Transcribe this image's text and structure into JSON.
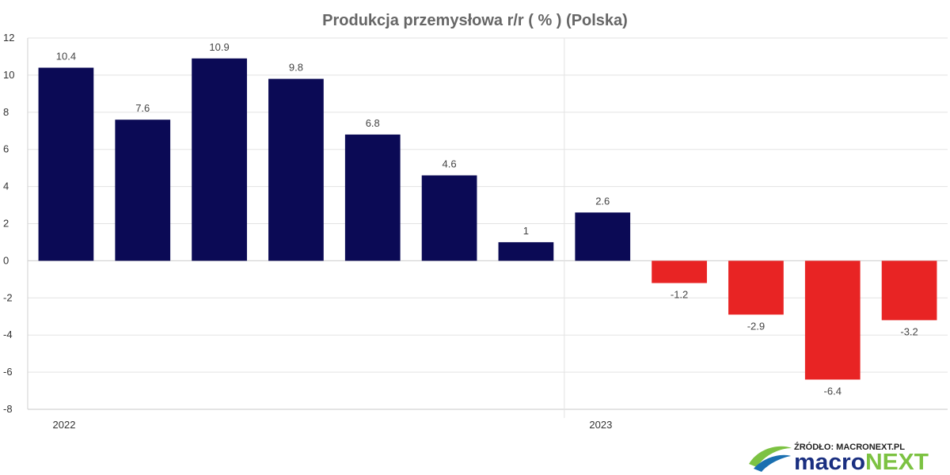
{
  "chart_data": {
    "type": "bar",
    "title": "Produkcja przemysłowa r/r ( % ) (Polska)",
    "xlabel": "",
    "ylabel": "",
    "ylim": [
      -8,
      12
    ],
    "yticks": [
      12,
      10,
      8,
      6,
      4,
      2,
      0,
      -2,
      -4,
      -6,
      -8
    ],
    "x_ticks": [
      {
        "label": "2022",
        "at_index": 0
      },
      {
        "label": "2023",
        "at_index": 7
      }
    ],
    "values": [
      10.4,
      7.6,
      10.9,
      9.8,
      6.8,
      4.6,
      1,
      2.6,
      -1.2,
      -2.9,
      -6.4,
      -3.2
    ],
    "data_labels": [
      "10.4",
      "7.6",
      "10.9",
      "9.8",
      "6.8",
      "4.6",
      "1",
      "2.6",
      "-1.2",
      "-2.9",
      "-6.4",
      "-3.2"
    ],
    "colors": {
      "positive": "#0b0a55",
      "negative": "#e82424",
      "grid": "#e3e3e3"
    },
    "legend": "none",
    "grid": true
  },
  "source": {
    "text": "ŹRÓDŁO: MACRONEXT.PL"
  },
  "brand": {
    "part1": "macro",
    "part2": "NEXT",
    "color1": "#1a2f80",
    "color2": "#7cc242"
  }
}
